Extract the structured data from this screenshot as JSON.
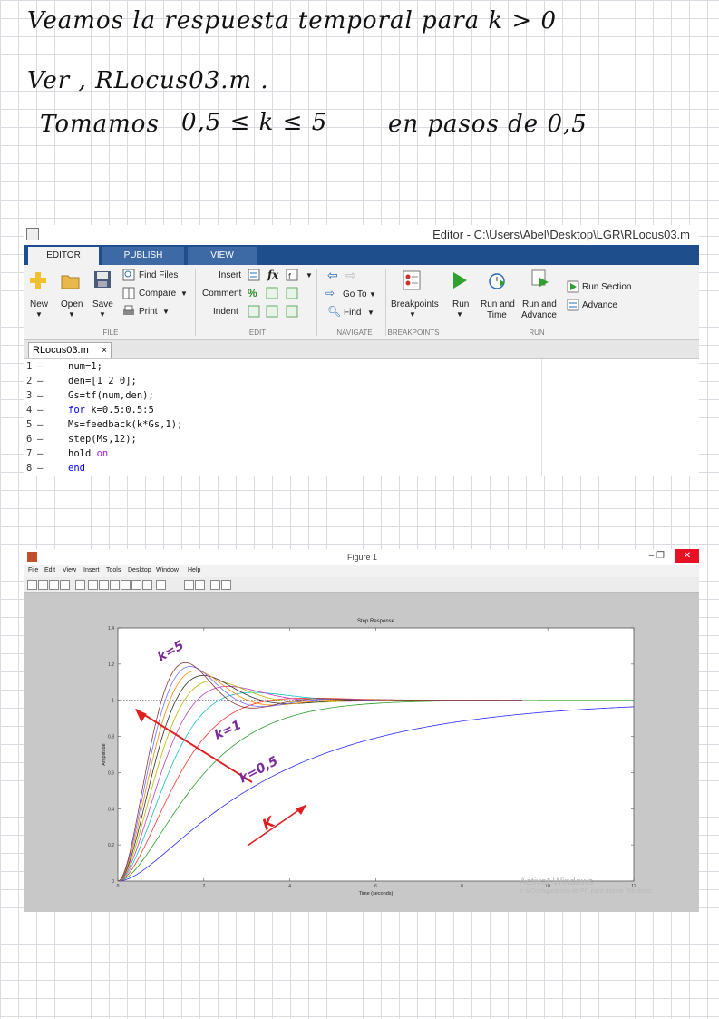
{
  "notes": {
    "line1": "Veamos la respuesta temporal para  k > 0",
    "line2": "Ver , RLocus03.m .",
    "line3_prefix": "Tomamos",
    "line3_range": "0,5 ≤ k ≤ 5",
    "line3_suffix": "en pasos de 0,5"
  },
  "editor": {
    "window_title": "Editor - C:\\Users\\Abel\\Desktop\\LGR\\RLocus03.m",
    "tabs": [
      "EDITOR",
      "PUBLISH",
      "VIEW"
    ],
    "file_group": {
      "new": "New",
      "open": "Open",
      "save": "Save",
      "find_files": "Find Files",
      "compare": "Compare",
      "print": "Print",
      "label": "FILE"
    },
    "edit_group": {
      "insert": "Insert",
      "comment": "Comment",
      "indent": "Indent",
      "fx": "fx",
      "label": "EDIT"
    },
    "navigate_group": {
      "goto": "Go To",
      "find": "Find",
      "label": "NAVIGATE"
    },
    "breakpoints_group": {
      "breakpoints": "Breakpoints",
      "label": "BREAKPOINTS"
    },
    "run_group": {
      "run": "Run",
      "run_time_1": "Run and",
      "run_time_2": "Time",
      "run_adv_1": "Run and",
      "run_adv_2": "Advance",
      "run_section": "Run Section",
      "advance": "Advance",
      "label": "RUN"
    },
    "doc_tab": "RLocus03.m",
    "doc_tab_close": "×",
    "code_lines": [
      {
        "n": "1",
        "text": "num=1;"
      },
      {
        "n": "2",
        "text": "den=[1 2 0];"
      },
      {
        "n": "3",
        "text": "Gs=tf(num,den);"
      },
      {
        "n": "4",
        "kw": "for",
        "text": " k=0.5:0.5:5"
      },
      {
        "n": "5",
        "text": "Ms=feedback(k*Gs,1);"
      },
      {
        "n": "6",
        "text": "step(Ms,12);"
      },
      {
        "n": "7",
        "text": "hold ",
        "kw2": "on"
      },
      {
        "n": "8",
        "kw": "end",
        "text": ""
      }
    ]
  },
  "figure": {
    "window_title": "Figure 1",
    "window_controls": "–   ❐",
    "close": "✕",
    "menu": [
      "File",
      "Edit",
      "View",
      "Insert",
      "Tools",
      "Desktop",
      "Window",
      "Help"
    ],
    "watermark_1": "Activar Windows",
    "watermark_2": "Ir a Configuración de PC para activar Windows."
  },
  "chart_data": {
    "type": "line",
    "title": "Step Response",
    "xlabel": "Time (seconds)",
    "ylabel": "Amplitude",
    "xlim": [
      0,
      12
    ],
    "ylim": [
      0,
      1.4
    ],
    "xticks": [
      "0",
      "2",
      "4",
      "6",
      "8",
      "10",
      "12"
    ],
    "yticks": [
      "0",
      "0.2",
      "0.4",
      "0.6",
      "0.8",
      "1",
      "1.2",
      "1.4"
    ],
    "k_values": [
      0.5,
      1,
      1.5,
      2,
      2.5,
      3,
      3.5,
      4,
      4.5,
      5
    ],
    "series_colors": [
      "#2b2bff",
      "#2ca02c",
      "#ff3030",
      "#17c0c0",
      "#c040c0",
      "#b8b800",
      "#303030",
      "#ff8c00",
      "#7070ff",
      "#8a3a3a"
    ],
    "annotations": [
      {
        "text": "k=5",
        "color": "#7a2a9a"
      },
      {
        "text": "k=1",
        "color": "#7a2a9a"
      },
      {
        "text": "k=0,5",
        "color": "#7a2a9a"
      },
      {
        "text": "K",
        "color": "#e02020"
      }
    ]
  }
}
